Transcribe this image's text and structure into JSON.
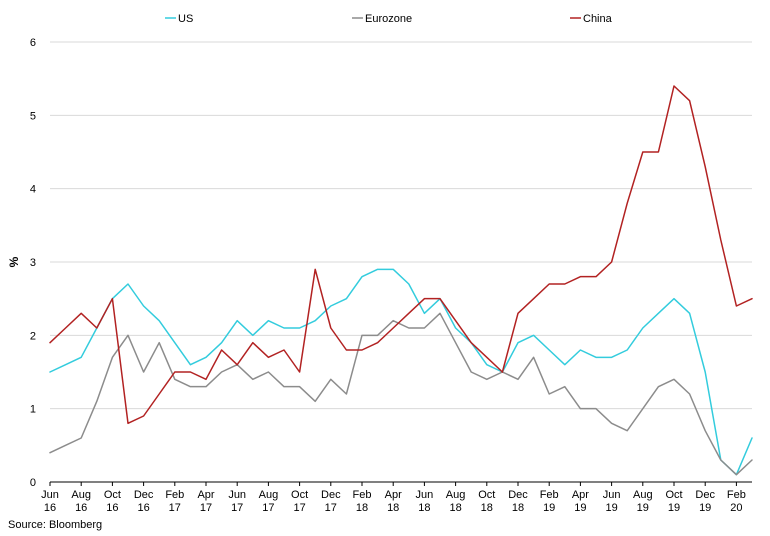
{
  "chart_data": {
    "type": "line",
    "ylabel": "%",
    "ylim": [
      0,
      6
    ],
    "yticks": [
      "0",
      "1",
      "2",
      "3",
      "4",
      "5",
      "6"
    ],
    "grid": true,
    "legend_position": "top",
    "source": "Source: Bloomberg",
    "x": [
      "Jun 16",
      "Jul 16",
      "Aug 16",
      "Sep 16",
      "Oct 16",
      "Nov 16",
      "Dec 16",
      "Jan 17",
      "Feb 17",
      "Mar 17",
      "Apr 17",
      "May 17",
      "Jun 17",
      "Jul 17",
      "Aug 17",
      "Sep 17",
      "Oct 17",
      "Nov 17",
      "Dec 17",
      "Jan 18",
      "Feb 18",
      "Mar 18",
      "Apr 18",
      "May 18",
      "Jun 18",
      "Jul 18",
      "Aug 18",
      "Sep 18",
      "Oct 18",
      "Nov 18",
      "Dec 18",
      "Jan 19",
      "Feb 19",
      "Mar 19",
      "Apr 19",
      "May 19",
      "Jun 19",
      "Jul 19",
      "Aug 19",
      "Sep 19",
      "Oct 19",
      "Nov 19",
      "Dec 19",
      "Jan 20",
      "Feb 20",
      "Mar 20"
    ],
    "xtick_labels": [
      {
        "month": "Jun",
        "year": "16"
      },
      {
        "month": "Aug",
        "year": "16"
      },
      {
        "month": "Oct",
        "year": "16"
      },
      {
        "month": "Dec",
        "year": "16"
      },
      {
        "month": "Feb",
        "year": "17"
      },
      {
        "month": "Apr",
        "year": "17"
      },
      {
        "month": "Jun",
        "year": "17"
      },
      {
        "month": "Aug",
        "year": "17"
      },
      {
        "month": "Oct",
        "year": "17"
      },
      {
        "month": "Dec",
        "year": "17"
      },
      {
        "month": "Feb",
        "year": "18"
      },
      {
        "month": "Apr",
        "year": "18"
      },
      {
        "month": "Jun",
        "year": "18"
      },
      {
        "month": "Aug",
        "year": "18"
      },
      {
        "month": "Oct",
        "year": "18"
      },
      {
        "month": "Dec",
        "year": "18"
      },
      {
        "month": "Feb",
        "year": "19"
      },
      {
        "month": "Apr",
        "year": "19"
      },
      {
        "month": "Jun",
        "year": "19"
      },
      {
        "month": "Aug",
        "year": "19"
      },
      {
        "month": "Oct",
        "year": "19"
      },
      {
        "month": "Dec",
        "year": "19"
      },
      {
        "month": "Feb",
        "year": "20"
      }
    ],
    "series": [
      {
        "name": "US",
        "color": "#33ccdd",
        "values": [
          1.5,
          1.6,
          1.7,
          2.1,
          2.5,
          2.7,
          2.4,
          2.2,
          1.9,
          1.6,
          1.7,
          1.9,
          2.2,
          2.0,
          2.2,
          2.1,
          2.1,
          2.2,
          2.4,
          2.5,
          2.8,
          2.9,
          2.9,
          2.7,
          2.3,
          2.5,
          2.1,
          1.9,
          1.6,
          1.5,
          1.9,
          2.0,
          1.8,
          1.6,
          1.8,
          1.7,
          1.7,
          1.8,
          2.1,
          2.3,
          2.5,
          2.3,
          1.5,
          0.3,
          0.1,
          0.6
        ]
      },
      {
        "name": "Eurozone",
        "color": "#8c8c8c",
        "values": [
          0.4,
          0.5,
          0.6,
          1.1,
          1.7,
          2.0,
          1.5,
          1.9,
          1.4,
          1.3,
          1.3,
          1.5,
          1.6,
          1.4,
          1.5,
          1.3,
          1.3,
          1.1,
          1.4,
          1.2,
          2.0,
          2.0,
          2.2,
          2.1,
          2.1,
          2.3,
          1.9,
          1.5,
          1.4,
          1.5,
          1.4,
          1.7,
          1.2,
          1.3,
          1.0,
          1.0,
          0.8,
          0.7,
          1.0,
          1.3,
          1.4,
          1.2,
          0.7,
          0.3,
          0.1,
          0.3
        ]
      },
      {
        "name": "China",
        "color": "#b22222",
        "values": [
          1.9,
          2.1,
          2.3,
          2.1,
          2.5,
          0.8,
          0.9,
          1.2,
          1.5,
          1.5,
          1.4,
          1.8,
          1.6,
          1.9,
          1.7,
          1.8,
          1.5,
          2.9,
          2.1,
          1.8,
          1.8,
          1.9,
          2.1,
          2.3,
          2.5,
          2.5,
          2.2,
          1.9,
          1.7,
          1.5,
          2.3,
          2.5,
          2.7,
          2.7,
          2.8,
          2.8,
          3.0,
          3.8,
          4.5,
          4.5,
          5.4,
          5.2,
          4.3,
          3.3,
          2.4,
          2.5
        ]
      }
    ]
  }
}
